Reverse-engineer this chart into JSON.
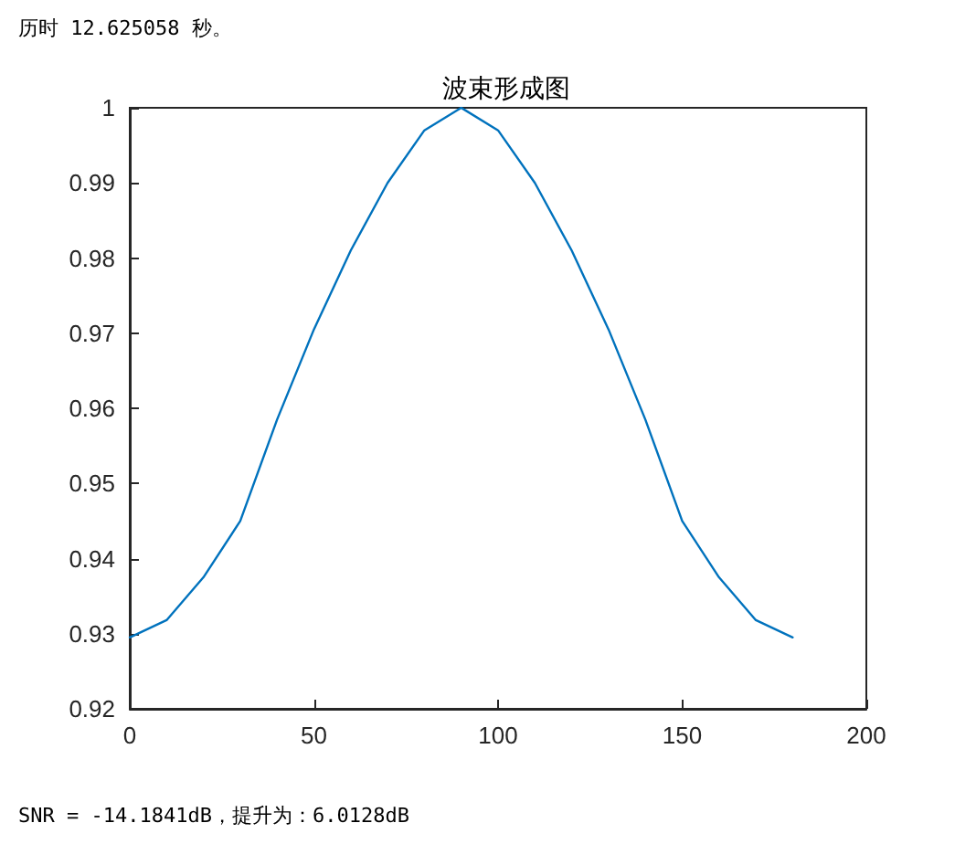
{
  "chart_data": {
    "type": "line",
    "title": "波束形成图",
    "annotations": [
      "历时 12.625058 秒。",
      "SNR = -14.1841dB，提升为：6.0128dB"
    ],
    "x": [
      0,
      10,
      20,
      30,
      40,
      50,
      60,
      70,
      80,
      90,
      100,
      110,
      120,
      130,
      140,
      150,
      160,
      170,
      180
    ],
    "series": [
      {
        "color": "#0072bd",
        "values": [
          0.9295,
          0.9318,
          0.9375,
          0.945,
          0.9585,
          0.9705,
          0.981,
          0.99,
          0.997,
          1.0,
          0.997,
          0.99,
          0.981,
          0.9705,
          0.9585,
          0.945,
          0.9375,
          0.9318,
          0.9295
        ]
      }
    ],
    "xlim": [
      0,
      200
    ],
    "xticks": [
      0,
      50,
      100,
      150,
      200
    ],
    "ylim": [
      0.92,
      1
    ],
    "yticks": [
      0.92,
      0.93,
      0.94,
      0.95,
      0.96,
      0.97,
      0.98,
      0.99,
      1
    ],
    "grid": false,
    "marker": "none",
    "line_style": "solid"
  }
}
